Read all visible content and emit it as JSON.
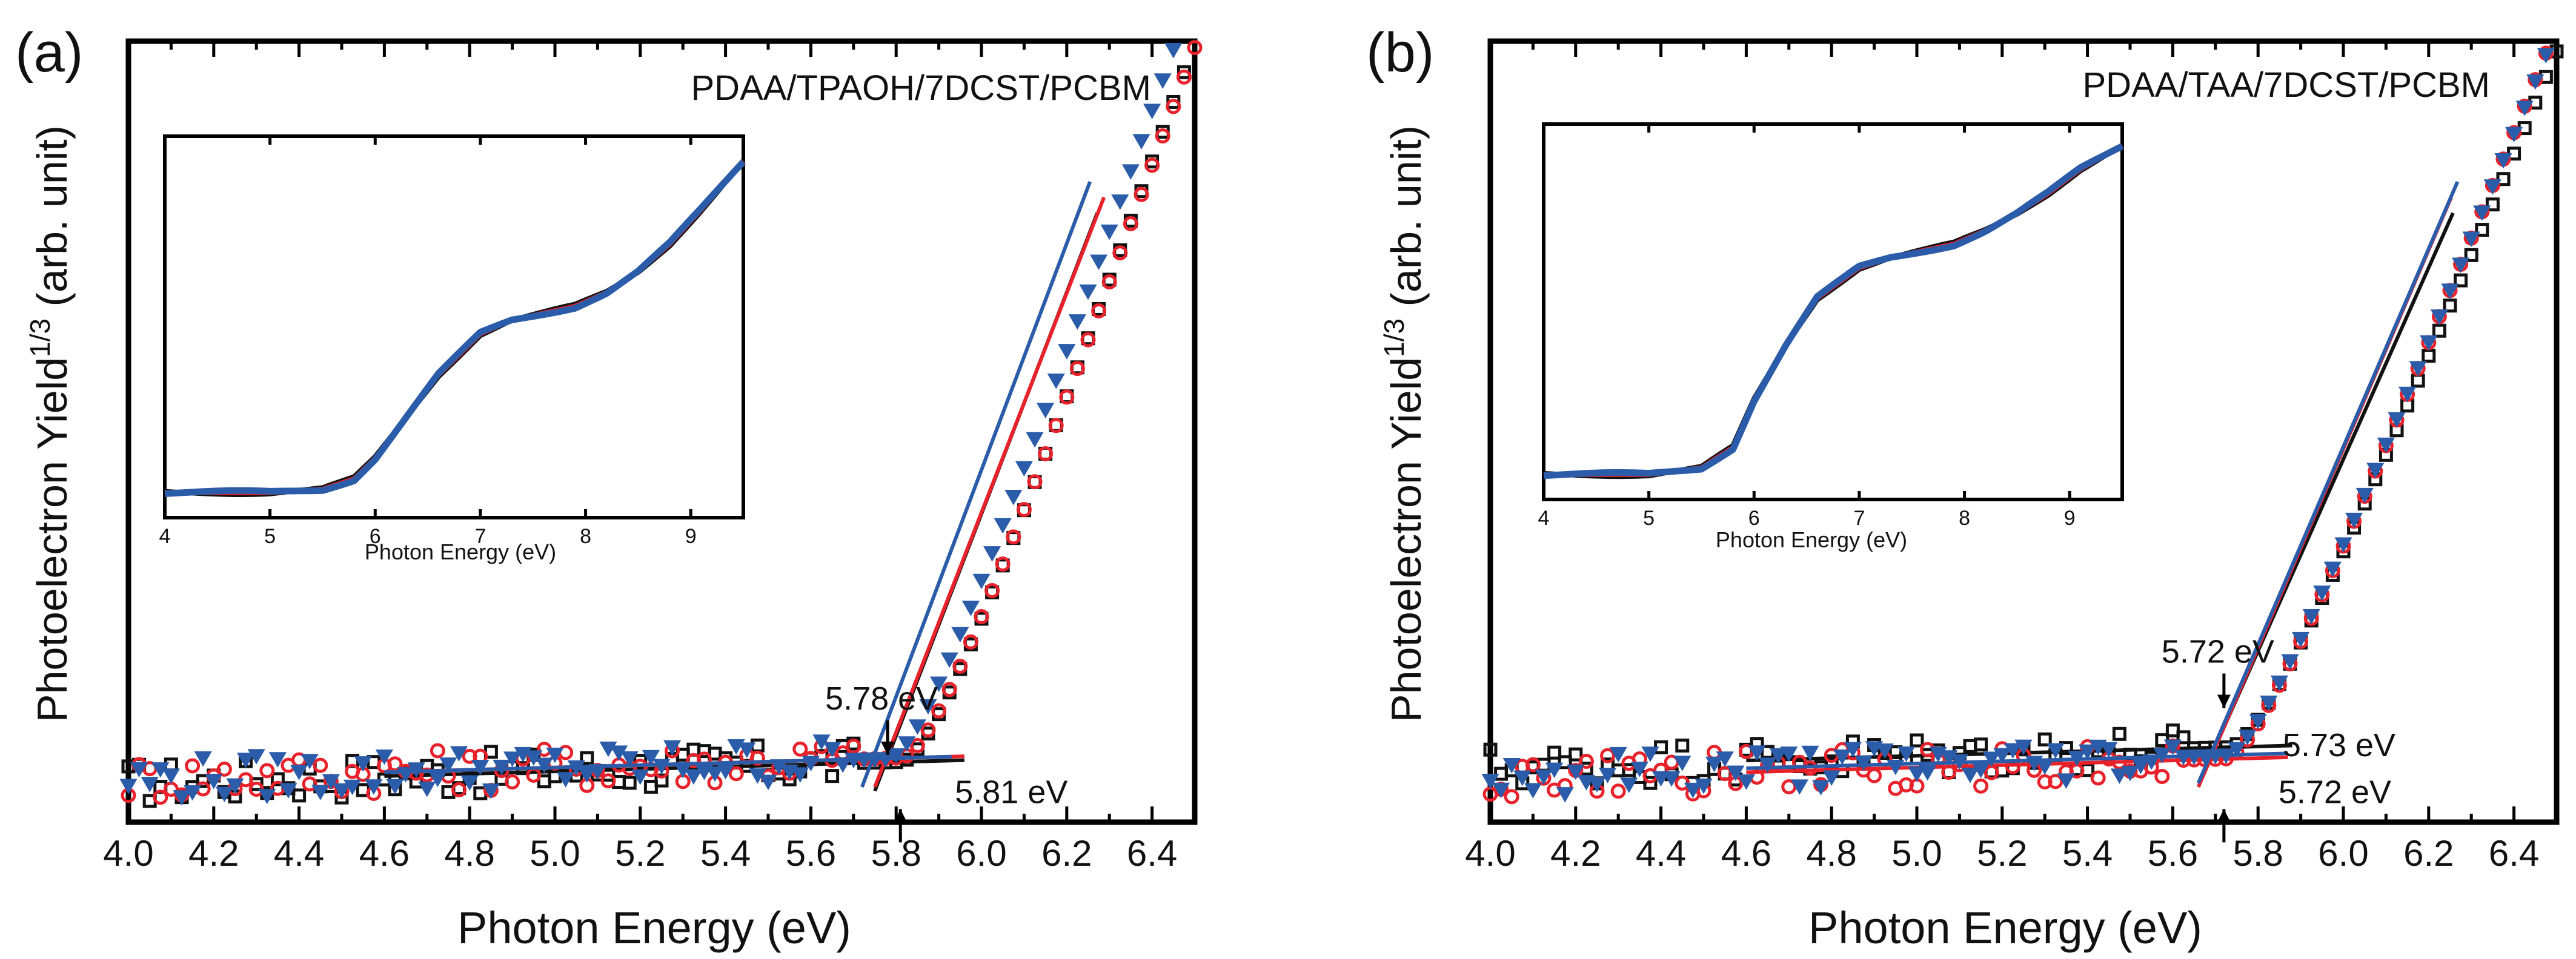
{
  "chart_data": [
    {
      "type": "scatter",
      "panel_label": "(a)",
      "title": "PDAA/TPAOH/7DCST/PCBM",
      "xlabel": "Photon Energy (eV)",
      "ylabel_main": "Photoelectron Yield",
      "ylabel_sup": "1/3",
      "ylabel_unit": " (arb. unit)",
      "xlim": [
        4.0,
        6.5
      ],
      "ylim": [
        0,
        1.0
      ],
      "xticks": [
        "4.0",
        "4.2",
        "4.4",
        "4.6",
        "4.8",
        "5.0",
        "5.2",
        "5.4",
        "5.6",
        "5.8",
        "6.0",
        "6.2",
        "6.4"
      ],
      "colors": {
        "black": "#111111",
        "red": "#e8212a",
        "blue": "#2a5caa"
      },
      "series": [
        {
          "name": "black squares",
          "color": "#111111",
          "marker": "square",
          "onset": 5.81,
          "slope": 1.55,
          "base": 0.05
        },
        {
          "name": "red circles",
          "color": "#e8212a",
          "marker": "circle",
          "onset": 5.81,
          "slope": 1.53,
          "base": 0.055
        },
        {
          "name": "blue triangles",
          "color": "#2a5caa",
          "marker": "triangle",
          "onset": 5.78,
          "slope": 1.58,
          "base": 0.055
        }
      ],
      "annotations": [
        {
          "text": "5.78 eV",
          "x": 5.78,
          "y": 0.09,
          "arrow": "down"
        },
        {
          "text": "5.81 eV",
          "x": 5.81,
          "y": 0.04,
          "arrow": "up"
        }
      ],
      "inset": {
        "xlabel": "Photon Energy (eV)",
        "xlim": [
          4,
          9.5
        ],
        "ylim": [
          0,
          1
        ],
        "xticks": [
          "4",
          "5",
          "6",
          "7",
          "8",
          "9"
        ],
        "x": [
          4.0,
          5.0,
          5.5,
          5.8,
          6.0,
          6.3,
          6.6,
          7.0,
          7.3,
          7.6,
          7.9,
          8.2,
          8.5,
          8.8,
          9.1,
          9.5
        ],
        "y": [
          0.02,
          0.02,
          0.03,
          0.06,
          0.12,
          0.24,
          0.36,
          0.48,
          0.52,
          0.54,
          0.56,
          0.6,
          0.66,
          0.74,
          0.84,
          0.98
        ]
      }
    },
    {
      "type": "scatter",
      "panel_label": "(b)",
      "title": "PDAA/TAA/7DCST/PCBM",
      "xlabel": "Photon Energy (eV)",
      "ylabel_main": "Photoelectron Yield",
      "ylabel_sup": "1/3",
      "ylabel_unit": " (arb. unit)",
      "xlim": [
        4.0,
        6.5
      ],
      "ylim": [
        0,
        1.0
      ],
      "xticks": [
        "4.0",
        "4.2",
        "4.4",
        "4.6",
        "4.8",
        "5.0",
        "5.2",
        "5.4",
        "5.6",
        "5.8",
        "6.0",
        "6.2",
        "6.4"
      ],
      "colors": {
        "black": "#111111",
        "red": "#e8212a",
        "blue": "#2a5caa"
      },
      "series": [
        {
          "name": "black squares",
          "color": "#111111",
          "marker": "square",
          "onset": 5.73,
          "slope": 1.32,
          "base": 0.07
        },
        {
          "name": "red circles",
          "color": "#e8212a",
          "marker": "circle",
          "onset": 5.72,
          "slope": 1.37,
          "base": 0.055
        },
        {
          "name": "blue triangles",
          "color": "#2a5caa",
          "marker": "triangle",
          "onset": 5.72,
          "slope": 1.36,
          "base": 0.06
        }
      ],
      "annotations": [
        {
          "text": "5.72 eV",
          "x": 5.72,
          "y": 0.15,
          "arrow": "down"
        },
        {
          "text": "5.73 eV",
          "x": 5.73,
          "y": 0.1,
          "arrow": "none"
        },
        {
          "text": "5.72 eV",
          "x": 5.72,
          "y": 0.04,
          "arrow": "up"
        }
      ],
      "inset": {
        "xlabel": "Photon Energy (eV)",
        "xlim": [
          4,
          9.5
        ],
        "ylim": [
          0,
          1
        ],
        "xticks": [
          "4",
          "5",
          "6",
          "7",
          "8",
          "9"
        ],
        "x": [
          4.0,
          5.0,
          5.5,
          5.8,
          6.0,
          6.3,
          6.6,
          7.0,
          7.3,
          7.6,
          7.9,
          8.2,
          8.5,
          8.8,
          9.1,
          9.5
        ],
        "y": [
          0.02,
          0.02,
          0.04,
          0.1,
          0.24,
          0.4,
          0.54,
          0.63,
          0.66,
          0.68,
          0.7,
          0.74,
          0.79,
          0.85,
          0.92,
          0.99
        ]
      }
    }
  ]
}
